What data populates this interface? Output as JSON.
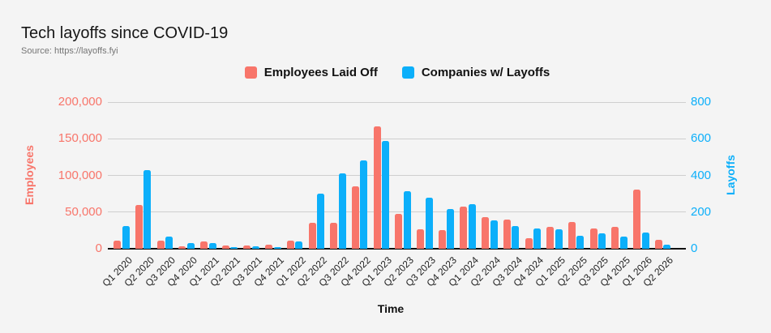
{
  "page": {
    "background": "#f4f4f4"
  },
  "header": {
    "title": "Tech layoffs since COVID-19",
    "source": "Source: https://layoffs.fyi"
  },
  "legend": [
    {
      "label": "Employees Laid Off",
      "color": "#f8756a"
    },
    {
      "label": "Companies w/ Layoffs",
      "color": "#0caffa"
    }
  ],
  "chart_data": {
    "type": "bar",
    "title": "Tech layoffs since COVID-19",
    "xlabel": "Time",
    "grid": true,
    "legend_position": "top",
    "categories": [
      "Q1 2020",
      "Q2 2020",
      "Q3 2020",
      "Q4 2020",
      "Q1 2021",
      "Q2 2021",
      "Q3 2021",
      "Q4 2021",
      "Q1 2022",
      "Q2 2022",
      "Q3 2022",
      "Q4 2022",
      "Q1 2023",
      "Q2 2023",
      "Q3 2023",
      "Q4 2023",
      "Q1 2024",
      "Q2 2024",
      "Q3 2024",
      "Q4 2024",
      "Q1 2025",
      "Q2 2025",
      "Q3 2025",
      "Q4 2025",
      "Q1 2026",
      "Q2 2026"
    ],
    "series": [
      {
        "name": "Employees Laid Off",
        "axis": "left",
        "color": "#f8756a",
        "values": [
          11000,
          60000,
          11000,
          3000,
          10000,
          4300,
          4000,
          5400,
          11000,
          35000,
          35000,
          85000,
          167000,
          47000,
          26000,
          25000,
          58000,
          43000,
          40000,
          14000,
          30000,
          36000,
          28000,
          30000,
          81000,
          12000
        ]
      },
      {
        "name": "Companies w/ Layoffs",
        "axis": "right",
        "color": "#0caffa",
        "values": [
          125,
          430,
          65,
          30,
          30,
          10,
          13,
          9,
          40,
          300,
          410,
          480,
          590,
          315,
          280,
          215,
          245,
          155,
          125,
          112,
          108,
          72,
          85,
          68,
          90,
          22
        ]
      }
    ],
    "left_axis": {
      "label": "Employees",
      "min": 0,
      "max": 200000,
      "ticks": [
        "0",
        "50,000",
        "100,000",
        "150,000",
        "200,000"
      ],
      "color": "#f8756a"
    },
    "right_axis": {
      "label": "Layoffs",
      "min": 0,
      "max": 800,
      "ticks": [
        "0",
        "200",
        "400",
        "600",
        "800"
      ],
      "color": "#0caffa"
    }
  }
}
